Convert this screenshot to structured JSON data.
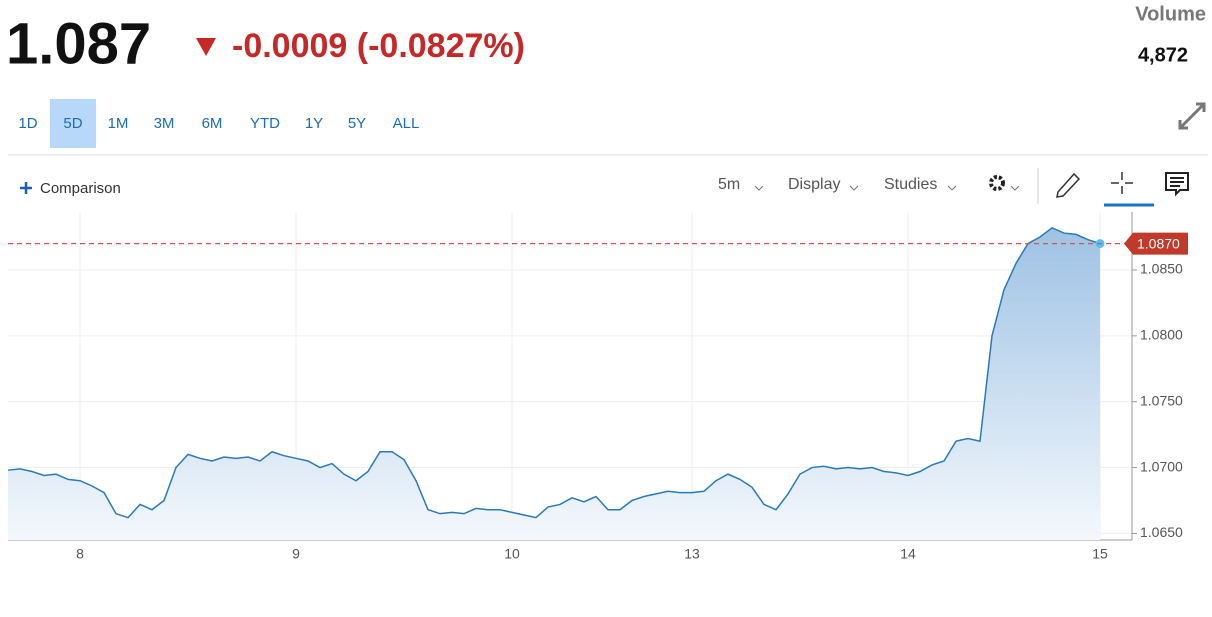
{
  "header": {
    "price": 1.087,
    "change": "-0.0009 (-0.0827%)",
    "volume_label": "Volume",
    "volume": "4,872"
  },
  "ranges": {
    "items": [
      "1D",
      "5D",
      "1M",
      "3M",
      "6M",
      "YTD",
      "1Y",
      "5Y",
      "ALL"
    ],
    "selected": "5D"
  },
  "toolbar": {
    "comparison": "Comparison",
    "interval": "5m",
    "display": "Display",
    "studies": "Studies"
  },
  "chart_data": {
    "type": "area",
    "categories": [
      null,
      null,
      null,
      null,
      null,
      null,
      "8",
      null,
      null,
      null,
      null,
      null,
      null,
      null,
      null,
      null,
      null,
      null,
      null,
      null,
      null,
      null,
      null,
      null,
      "9",
      null,
      null,
      null,
      null,
      null,
      null,
      null,
      null,
      null,
      null,
      null,
      null,
      null,
      null,
      null,
      null,
      null,
      "10",
      null,
      null,
      null,
      null,
      null,
      null,
      null,
      null,
      null,
      null,
      null,
      null,
      null,
      null,
      "13",
      null,
      null,
      null,
      null,
      null,
      null,
      null,
      null,
      null,
      null,
      null,
      null,
      null,
      null,
      null,
      null,
      null,
      "14",
      null,
      null,
      null,
      null,
      null,
      null,
      null,
      null,
      null,
      null,
      null,
      null,
      null,
      null,
      null,
      "15"
    ],
    "series": [
      {
        "color": "#2a7ab8",
        "values": [
          1.0698,
          1.0699,
          1.0697,
          1.0694,
          1.0695,
          1.0691,
          1.069,
          1.0686,
          1.0681,
          1.0665,
          1.0662,
          1.0672,
          1.0668,
          1.0675,
          1.07,
          1.071,
          1.0707,
          1.0705,
          1.0708,
          1.0707,
          1.0708,
          1.0705,
          1.0712,
          1.0709,
          1.0707,
          1.0705,
          1.07,
          1.0703,
          1.0695,
          1.069,
          1.0697,
          1.0712,
          1.0712,
          1.0706,
          1.069,
          1.0668,
          1.0665,
          1.0666,
          1.0665,
          1.0669,
          1.0668,
          1.0668,
          1.0666,
          1.0664,
          1.0662,
          1.067,
          1.0672,
          1.0677,
          1.0674,
          1.0678,
          1.0668,
          1.0668,
          1.0675,
          1.0678,
          1.068,
          1.0682,
          1.0681,
          1.0681,
          1.0682,
          1.069,
          1.0695,
          1.0691,
          1.0685,
          1.0672,
          1.0668,
          1.068,
          1.0695,
          1.07,
          1.0701,
          1.0699,
          1.07,
          1.0699,
          1.07,
          1.0697,
          1.0696,
          1.0694,
          1.0697,
          1.0702,
          1.0705,
          1.072,
          1.0722,
          1.072,
          1.08,
          1.0835,
          1.0855,
          1.087,
          1.0875,
          1.0882,
          1.0878,
          1.0877,
          1.0873,
          1.087
        ]
      }
    ],
    "ylim": [
      1.0645,
      1.0894
    ],
    "yticks": [
      {
        "value": 1.065,
        "label": "1.0650"
      },
      {
        "value": 1.07,
        "label": "1.0700"
      },
      {
        "value": 1.075,
        "label": "1.0750"
      },
      {
        "value": 1.08,
        "label": "1.0800"
      },
      {
        "value": 1.085,
        "label": "1.0850"
      }
    ],
    "reference_line": {
      "value": 1.087,
      "label": "1.0870",
      "color": "#d9534f"
    },
    "grid": true
  }
}
